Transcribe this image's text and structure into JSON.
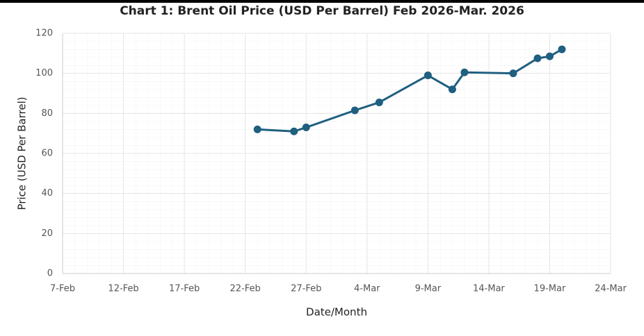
{
  "chart_data": {
    "type": "line",
    "title": "Chart 1: Brent Oil Price (USD Per Barrel) Feb 2026-Mar. 2026",
    "x_label": "Date/Month",
    "y_label": "Price (USD Per Barrel)",
    "x": [
      "2026-02-23",
      "2026-02-26",
      "2026-02-27",
      "2026-03-03",
      "2026-03-05",
      "2026-03-09",
      "2026-03-11",
      "2026-03-12",
      "2026-03-16",
      "2026-03-18",
      "2026-03-19",
      "2026-03-20"
    ],
    "series": [
      {
        "name": "Brent",
        "color": "#1f5f80",
        "values": [
          72,
          71,
          73,
          81.5,
          85.5,
          99,
          92,
          100.5,
          100,
          107.5,
          108.5,
          112
        ]
      }
    ],
    "xlim": [
      "2026-02-07",
      "2026-03-24"
    ],
    "xticks": [
      {
        "value": "2026-02-07",
        "label": "7-Feb"
      },
      {
        "value": "2026-02-12",
        "label": "12-Feb"
      },
      {
        "value": "2026-02-17",
        "label": "17-Feb"
      },
      {
        "value": "2026-02-22",
        "label": "22-Feb"
      },
      {
        "value": "2026-02-27",
        "label": "27-Feb"
      },
      {
        "value": "2026-03-04",
        "label": "4-Mar"
      },
      {
        "value": "2026-03-09",
        "label": "9-Mar"
      },
      {
        "value": "2026-03-14",
        "label": "14-Mar"
      },
      {
        "value": "2026-03-19",
        "label": "19-Mar"
      },
      {
        "value": "2026-03-24",
        "label": "24-Mar"
      }
    ],
    "ylim": [
      0,
      120
    ],
    "yticks": [
      0,
      20,
      40,
      60,
      80,
      100,
      120
    ],
    "grid": true
  }
}
